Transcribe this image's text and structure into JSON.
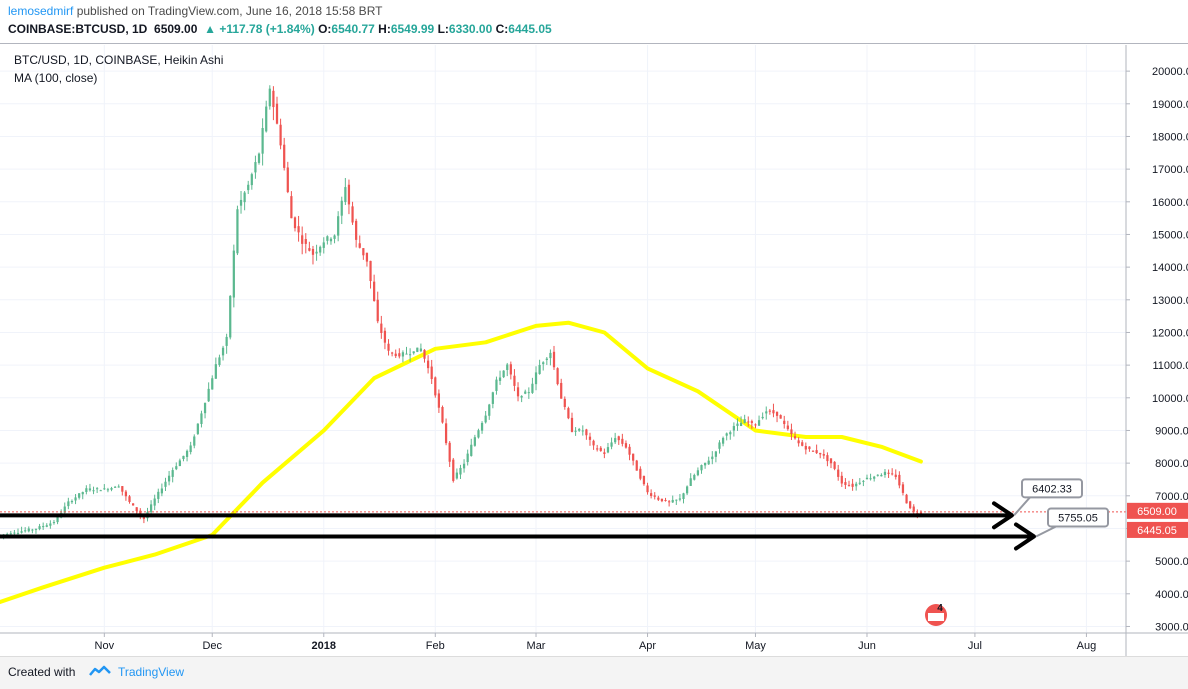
{
  "header": {
    "author": "lemosedmirf",
    "published": "published on TradingView.com, June 16, 2018 15:58 BRT",
    "quote_symbol": "COINBASE:BTCUSD, 1D",
    "quote_price": "6509.00",
    "quote_change": "+117.78 (+1.84%)",
    "o_label": "O:",
    "o_value": "6540.77",
    "h_label": "H:",
    "h_value": "6549.99",
    "l_label": "L:",
    "l_value": "6330.00",
    "c_label": "C:",
    "c_value": "6445.05"
  },
  "legend": {
    "series": "BTC/USD, 1D, COINBASE, Heikin Ashi",
    "indicator": "MA (100, close)"
  },
  "footer": {
    "created_with": "Created with",
    "brand": "TradingView"
  },
  "colors": {
    "up": "#26a69a",
    "up_light": "#5bb88f",
    "down": "#ef5350",
    "ma": "#ffff00",
    "hline": "#000000",
    "price_badge": "#ef5350"
  },
  "chart_data": {
    "type": "candlestick",
    "series_name": "BTC/USD, 1D, COINBASE, Heikin Ashi",
    "x_range": [
      "2017-10-03",
      "2018-08-12"
    ],
    "y_range": [
      2800,
      20800
    ],
    "y_ticks": [
      3000,
      4000,
      5000,
      6000,
      7000,
      8000,
      9000,
      10000,
      11000,
      12000,
      13000,
      14000,
      15000,
      16000,
      17000,
      18000,
      19000,
      20000
    ],
    "y_tick_labels": [
      "3000.00",
      "4000.00",
      "5000.00",
      "6000.00",
      "7000.00",
      "8000.00",
      "9000.00",
      "10000.00",
      "11000.00",
      "12000.00",
      "13000.00",
      "14000.00",
      "15000.00",
      "16000.00",
      "17000.00",
      "18000.00",
      "19000.00",
      "20000.00"
    ],
    "x_ticks": [
      {
        "date": "2017-11-01",
        "label": "Nov"
      },
      {
        "date": "2017-12-01",
        "label": "Dec"
      },
      {
        "date": "2018-01-01",
        "label": "2018"
      },
      {
        "date": "2018-02-01",
        "label": "Feb"
      },
      {
        "date": "2018-03-01",
        "label": "Mar"
      },
      {
        "date": "2018-04-01",
        "label": "Apr"
      },
      {
        "date": "2018-05-01",
        "label": "May"
      },
      {
        "date": "2018-06-01",
        "label": "Jun"
      },
      {
        "date": "2018-07-01",
        "label": "Jul"
      },
      {
        "date": "2018-08-01",
        "label": "Aug"
      }
    ],
    "price_path": [
      [
        "2017-10-03",
        5800
      ],
      [
        "2017-10-08",
        5900
      ],
      [
        "2017-10-13",
        6000
      ],
      [
        "2017-10-18",
        6200
      ],
      [
        "2017-10-22",
        6800
      ],
      [
        "2017-10-27",
        7200
      ],
      [
        "2017-11-01",
        7200
      ],
      [
        "2017-11-05",
        7300
      ],
      [
        "2017-11-08",
        6800
      ],
      [
        "2017-11-12",
        6300
      ],
      [
        "2017-11-15",
        6900
      ],
      [
        "2017-11-20",
        7800
      ],
      [
        "2017-11-25",
        8500
      ],
      [
        "2017-11-29",
        9900
      ],
      [
        "2017-12-02",
        11000
      ],
      [
        "2017-12-05",
        11800
      ],
      [
        "2017-12-08",
        15800
      ],
      [
        "2017-12-11",
        16500
      ],
      [
        "2017-12-14",
        17500
      ],
      [
        "2017-12-17",
        19500
      ],
      [
        "2017-12-20",
        17800
      ],
      [
        "2017-12-23",
        15500
      ],
      [
        "2017-12-26",
        14800
      ],
      [
        "2017-12-29",
        14400
      ],
      [
        "2018-01-01",
        14800
      ],
      [
        "2018-01-04",
        15000
      ],
      [
        "2018-01-07",
        16500
      ],
      [
        "2018-01-10",
        14800
      ],
      [
        "2018-01-13",
        14200
      ],
      [
        "2018-01-16",
        12300
      ],
      [
        "2018-01-19",
        11400
      ],
      [
        "2018-01-22",
        11300
      ],
      [
        "2018-01-25",
        11400
      ],
      [
        "2018-01-28",
        11500
      ],
      [
        "2018-01-31",
        10600
      ],
      [
        "2018-02-03",
        9200
      ],
      [
        "2018-02-06",
        7500
      ],
      [
        "2018-02-09",
        8000
      ],
      [
        "2018-02-12",
        8800
      ],
      [
        "2018-02-15",
        9500
      ],
      [
        "2018-02-18",
        10500
      ],
      [
        "2018-02-21",
        11000
      ],
      [
        "2018-02-24",
        10000
      ],
      [
        "2018-02-27",
        10200
      ],
      [
        "2018-03-02",
        11000
      ],
      [
        "2018-03-05",
        11400
      ],
      [
        "2018-03-08",
        10000
      ],
      [
        "2018-03-11",
        9000
      ],
      [
        "2018-03-14",
        9000
      ],
      [
        "2018-03-17",
        8500
      ],
      [
        "2018-03-20",
        8300
      ],
      [
        "2018-03-23",
        8800
      ],
      [
        "2018-03-26",
        8500
      ],
      [
        "2018-03-29",
        7800
      ],
      [
        "2018-04-01",
        7100
      ],
      [
        "2018-04-04",
        6900
      ],
      [
        "2018-04-07",
        6800
      ],
      [
        "2018-04-10",
        6900
      ],
      [
        "2018-04-13",
        7500
      ],
      [
        "2018-04-16",
        7900
      ],
      [
        "2018-04-19",
        8200
      ],
      [
        "2018-04-22",
        8800
      ],
      [
        "2018-04-25",
        9100
      ],
      [
        "2018-04-28",
        9300
      ],
      [
        "2018-05-01",
        9200
      ],
      [
        "2018-05-04",
        9600
      ],
      [
        "2018-05-07",
        9500
      ],
      [
        "2018-05-10",
        9000
      ],
      [
        "2018-05-13",
        8600
      ],
      [
        "2018-05-16",
        8400
      ],
      [
        "2018-05-19",
        8300
      ],
      [
        "2018-05-22",
        8000
      ],
      [
        "2018-05-25",
        7400
      ],
      [
        "2018-05-28",
        7300
      ],
      [
        "2018-05-31",
        7500
      ],
      [
        "2018-06-03",
        7600
      ],
      [
        "2018-06-06",
        7700
      ],
      [
        "2018-06-09",
        7600
      ],
      [
        "2018-06-12",
        6800
      ],
      [
        "2018-06-14",
        6500
      ],
      [
        "2018-06-16",
        6450
      ]
    ],
    "ma": {
      "name": "MA (100, close)",
      "points": [
        [
          "2017-10-03",
          3750
        ],
        [
          "2017-10-15",
          4200
        ],
        [
          "2017-11-01",
          4800
        ],
        [
          "2017-11-15",
          5200
        ],
        [
          "2017-12-01",
          5800
        ],
        [
          "2017-12-15",
          7400
        ],
        [
          "2018-01-01",
          9000
        ],
        [
          "2018-01-15",
          10600
        ],
        [
          "2018-02-01",
          11500
        ],
        [
          "2018-02-15",
          11700
        ],
        [
          "2018-03-01",
          12200
        ],
        [
          "2018-03-10",
          12300
        ],
        [
          "2018-03-20",
          12000
        ],
        [
          "2018-04-01",
          10900
        ],
        [
          "2018-04-15",
          10200
        ],
        [
          "2018-05-01",
          9000
        ],
        [
          "2018-05-15",
          8800
        ],
        [
          "2018-05-25",
          8800
        ],
        [
          "2018-06-05",
          8500
        ],
        [
          "2018-06-16",
          8050
        ]
      ]
    },
    "horizontal_lines": [
      {
        "value": 6402.33,
        "label": "6402.33"
      },
      {
        "value": 5755.05,
        "label": "5755.05"
      }
    ],
    "price_badges": [
      {
        "value": 6509.0,
        "label": "6509.00"
      },
      {
        "value": 6445.05,
        "label": "6445.05"
      }
    ],
    "current_price_line": 6509.0,
    "earnings_marker": "4"
  }
}
